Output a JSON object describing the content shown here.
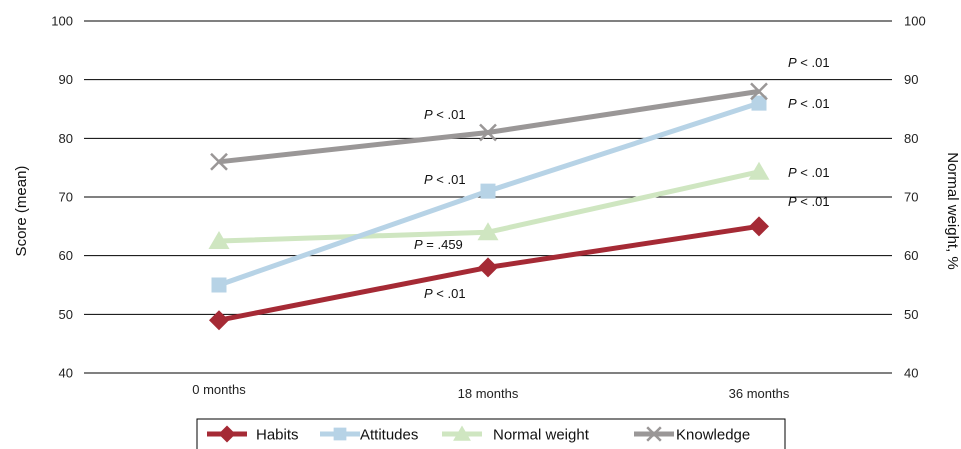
{
  "chart_data": {
    "type": "line",
    "categories": [
      "0 months",
      "18 months",
      "36 months"
    ],
    "ylabel": "Score (mean)",
    "ylabel_right": "Normal weight, %",
    "ylim": [
      40,
      100
    ],
    "yticks": [
      40,
      50,
      60,
      70,
      80,
      90,
      100
    ],
    "grid": true,
    "legend_position": "bottom",
    "series": [
      {
        "name": "Habits",
        "values": [
          49,
          58,
          65
        ],
        "color": "#a52a35",
        "marker": "diamond"
      },
      {
        "name": "Attitudes",
        "values": [
          55,
          71,
          86
        ],
        "color": "#b7d3e6",
        "marker": "square"
      },
      {
        "name": "Normal weight",
        "values": [
          62.5,
          64,
          74.3
        ],
        "color": "#cfe6c1",
        "marker": "triangle"
      },
      {
        "name": "Knowledge",
        "values": [
          76,
          81,
          88
        ],
        "color": "#9a9797",
        "marker": "x"
      }
    ],
    "annotations": [
      {
        "italic": "P",
        "rest": " < .01",
        "anchor": "Knowledge 18 months"
      },
      {
        "italic": "P",
        "rest": " < .01",
        "anchor": "Attitudes 18 months"
      },
      {
        "italic": "P",
        "rest": " = .459",
        "anchor": "Normal weight 18 months"
      },
      {
        "italic": "P",
        "rest": " < .01",
        "anchor": "Habits 18 months"
      },
      {
        "italic": "P",
        "rest": " < .01",
        "anchor": "Knowledge 36 months"
      },
      {
        "italic": "P",
        "rest": " < .01",
        "anchor": "Attitudes 36 months"
      },
      {
        "italic": "P",
        "rest": " < .01",
        "anchor": "Normal weight 36 months"
      },
      {
        "italic": "P",
        "rest": " < .01",
        "anchor": "Habits 36 months"
      }
    ]
  }
}
